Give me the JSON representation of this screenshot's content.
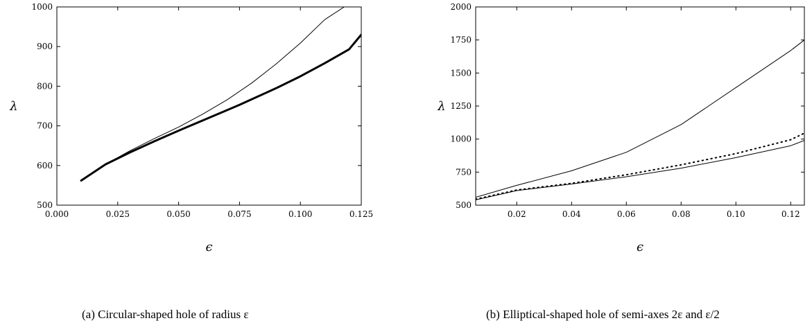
{
  "chart_data": [
    {
      "type": "line",
      "xlabel": "ϵ",
      "ylabel": "λ",
      "xlim": [
        0.0,
        0.125
      ],
      "ylim": [
        500,
        1000
      ],
      "xticks": [
        "0.000",
        "0.025",
        "0.050",
        "0.075",
        "0.100",
        "0.125"
      ],
      "yticks": [
        "500",
        "600",
        "700",
        "800",
        "900",
        "1000"
      ],
      "grid": false,
      "caption": "(a) Circular-shaped hole of radius ε",
      "series": [
        {
          "style": "thin",
          "x": [
            0.01,
            0.02,
            0.03,
            0.04,
            0.05,
            0.06,
            0.07,
            0.08,
            0.09,
            0.1,
            0.11,
            0.118
          ],
          "values": [
            562,
            603,
            637,
            668,
            697,
            730,
            766,
            808,
            856,
            909,
            968,
            1000
          ]
        },
        {
          "style": "thick",
          "x": [
            0.01,
            0.02,
            0.03,
            0.04,
            0.05,
            0.06,
            0.07,
            0.075,
            0.08,
            0.09,
            0.1,
            0.11,
            0.12,
            0.125
          ],
          "values": [
            562,
            603,
            633,
            661,
            688,
            714,
            740,
            753,
            767,
            795,
            825,
            858,
            893,
            930
          ]
        }
      ]
    },
    {
      "type": "line",
      "xlabel": "ϵ",
      "ylabel": "λ",
      "xlim": [
        0.005,
        0.125
      ],
      "ylim": [
        500,
        2000
      ],
      "xticks": [
        "0.02",
        "0.04",
        "0.06",
        "0.08",
        "0.10",
        "0.12"
      ],
      "yticks": [
        "500",
        "750",
        "1000",
        "1250",
        "1500",
        "1750",
        "2000"
      ],
      "grid": false,
      "caption": "(b) Elliptical-shaped hole of semi-axes 2ε and ε/2",
      "series": [
        {
          "style": "solid",
          "x": [
            0.005,
            0.02,
            0.04,
            0.06,
            0.08,
            0.1,
            0.12,
            0.125
          ],
          "values": [
            560,
            650,
            760,
            900,
            1110,
            1390,
            1670,
            1750
          ]
        },
        {
          "style": "solid",
          "x": [
            0.005,
            0.02,
            0.04,
            0.06,
            0.08,
            0.1,
            0.12,
            0.125
          ],
          "values": [
            540,
            610,
            660,
            715,
            780,
            860,
            950,
            990
          ]
        },
        {
          "style": "dotted",
          "x": [
            0.005,
            0.02,
            0.04,
            0.06,
            0.08,
            0.1,
            0.12,
            0.125
          ],
          "values": [
            545,
            615,
            665,
            730,
            805,
            890,
            995,
            1045
          ]
        }
      ]
    }
  ]
}
